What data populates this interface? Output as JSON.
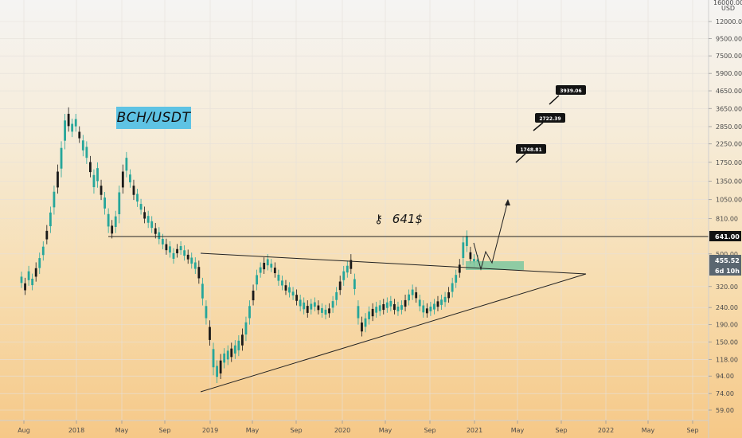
{
  "annotations": {
    "pair_label": "BCH/USDT",
    "key_icon": "key-icon",
    "key_level_text": "641$"
  },
  "colors": {
    "up_candle": "#26a69a",
    "down_candle": "#ef5350",
    "candle_dark": "#1a1a1a",
    "highlight_zone": "#7cc8a0",
    "pair_label_bg": "#5ec3e4",
    "line": "#222222"
  },
  "chart_data": {
    "type": "candlestick",
    "title": "",
    "x_tick_labels": [
      "Aug",
      "2018",
      "May",
      "Sep",
      "2019",
      "May",
      "Sep",
      "2020",
      "May",
      "Sep",
      "2021",
      "May",
      "Sep",
      "2022",
      "May",
      "Sep"
    ],
    "y_axis": {
      "scale": "log",
      "unit": "USD",
      "top_label": "16000.00",
      "tick_labels": [
        "12000.00",
        "9500.00",
        "7500.00",
        "5900.00",
        "4650.00",
        "3650.00",
        "2850.00",
        "2250.00",
        "1750.00",
        "1350.00",
        "1050.00",
        "810.00",
        "500.00",
        "320.00",
        "240.00",
        "190.00",
        "150.00",
        "118.00",
        "94.00",
        "74.00",
        "59.00"
      ]
    },
    "current_price": "455.52",
    "countdown": "6d 10h",
    "key_level": "641.00",
    "targets": [
      "1748.81",
      "2722.39",
      "3939.06"
    ],
    "candles_approx": [
      [
        330,
        370
      ],
      [
        300,
        340
      ],
      [
        340,
        400
      ],
      [
        320,
        360
      ],
      [
        360,
        420
      ],
      [
        400,
        480
      ],
      [
        480,
        560
      ],
      [
        600,
        700
      ],
      [
        700,
        900
      ],
      [
        900,
        1200
      ],
      [
        1200,
        1600
      ],
      [
        1500,
        2200
      ],
      [
        2200,
        3200
      ],
      [
        2800,
        3500
      ],
      [
        2600,
        3000
      ],
      [
        2800,
        3200
      ],
      [
        2400,
        2700
      ],
      [
        2000,
        2400
      ],
      [
        1800,
        2200
      ],
      [
        1500,
        1800
      ],
      [
        1200,
        1500
      ],
      [
        1300,
        1650
      ],
      [
        1100,
        1300
      ],
      [
        900,
        1100
      ],
      [
        700,
        880
      ],
      [
        650,
        750
      ],
      [
        700,
        850
      ],
      [
        800,
        1200
      ],
      [
        1200,
        1600
      ],
      [
        1500,
        1900
      ],
      [
        1300,
        1500
      ],
      [
        1100,
        1300
      ],
      [
        1000,
        1150
      ],
      [
        900,
        1000
      ],
      [
        800,
        900
      ],
      [
        750,
        850
      ],
      [
        700,
        790
      ],
      [
        650,
        720
      ],
      [
        600,
        680
      ],
      [
        560,
        620
      ],
      [
        520,
        580
      ],
      [
        500,
        560
      ],
      [
        460,
        510
      ],
      [
        500,
        540
      ],
      [
        520,
        560
      ],
      [
        480,
        530
      ],
      [
        460,
        500
      ],
      [
        430,
        480
      ],
      [
        400,
        450
      ],
      [
        350,
        430
      ],
      [
        260,
        340
      ],
      [
        200,
        250
      ],
      [
        150,
        190
      ],
      [
        100,
        140
      ],
      [
        90,
        110
      ],
      [
        95,
        120
      ],
      [
        110,
        130
      ],
      [
        115,
        135
      ],
      [
        120,
        140
      ],
      [
        125,
        145
      ],
      [
        130,
        155
      ],
      [
        140,
        170
      ],
      [
        160,
        200
      ],
      [
        200,
        250
      ],
      [
        260,
        310
      ],
      [
        320,
        380
      ],
      [
        380,
        420
      ],
      [
        400,
        450
      ],
      [
        420,
        470
      ],
      [
        410,
        440
      ],
      [
        380,
        420
      ],
      [
        340,
        380
      ],
      [
        320,
        350
      ],
      [
        300,
        330
      ],
      [
        290,
        320
      ],
      [
        280,
        300
      ],
      [
        260,
        290
      ],
      [
        240,
        270
      ],
      [
        230,
        260
      ],
      [
        220,
        250
      ],
      [
        230,
        255
      ],
      [
        240,
        260
      ],
      [
        230,
        250
      ],
      [
        220,
        240
      ],
      [
        215,
        235
      ],
      [
        220,
        240
      ],
      [
        235,
        265
      ],
      [
        260,
        300
      ],
      [
        300,
        350
      ],
      [
        340,
        400
      ],
      [
        380,
        430
      ],
      [
        400,
        470
      ],
      [
        300,
        360
      ],
      [
        200,
        250
      ],
      [
        170,
        200
      ],
      [
        180,
        210
      ],
      [
        200,
        230
      ],
      [
        210,
        240
      ],
      [
        220,
        245
      ],
      [
        225,
        250
      ],
      [
        230,
        255
      ],
      [
        235,
        260
      ],
      [
        240,
        265
      ],
      [
        230,
        255
      ],
      [
        225,
        245
      ],
      [
        230,
        250
      ],
      [
        240,
        270
      ],
      [
        260,
        290
      ],
      [
        280,
        310
      ],
      [
        270,
        300
      ],
      [
        240,
        270
      ],
      [
        220,
        250
      ],
      [
        220,
        240
      ],
      [
        225,
        245
      ],
      [
        230,
        255
      ],
      [
        240,
        265
      ],
      [
        245,
        270
      ],
      [
        255,
        280
      ],
      [
        270,
        300
      ],
      [
        290,
        340
      ],
      [
        330,
        380
      ],
      [
        380,
        440
      ],
      [
        450,
        600
      ],
      [
        540,
        650
      ],
      [
        460,
        520
      ],
      [
        440,
        470
      ],
      [
        445,
        465
      ]
    ]
  }
}
